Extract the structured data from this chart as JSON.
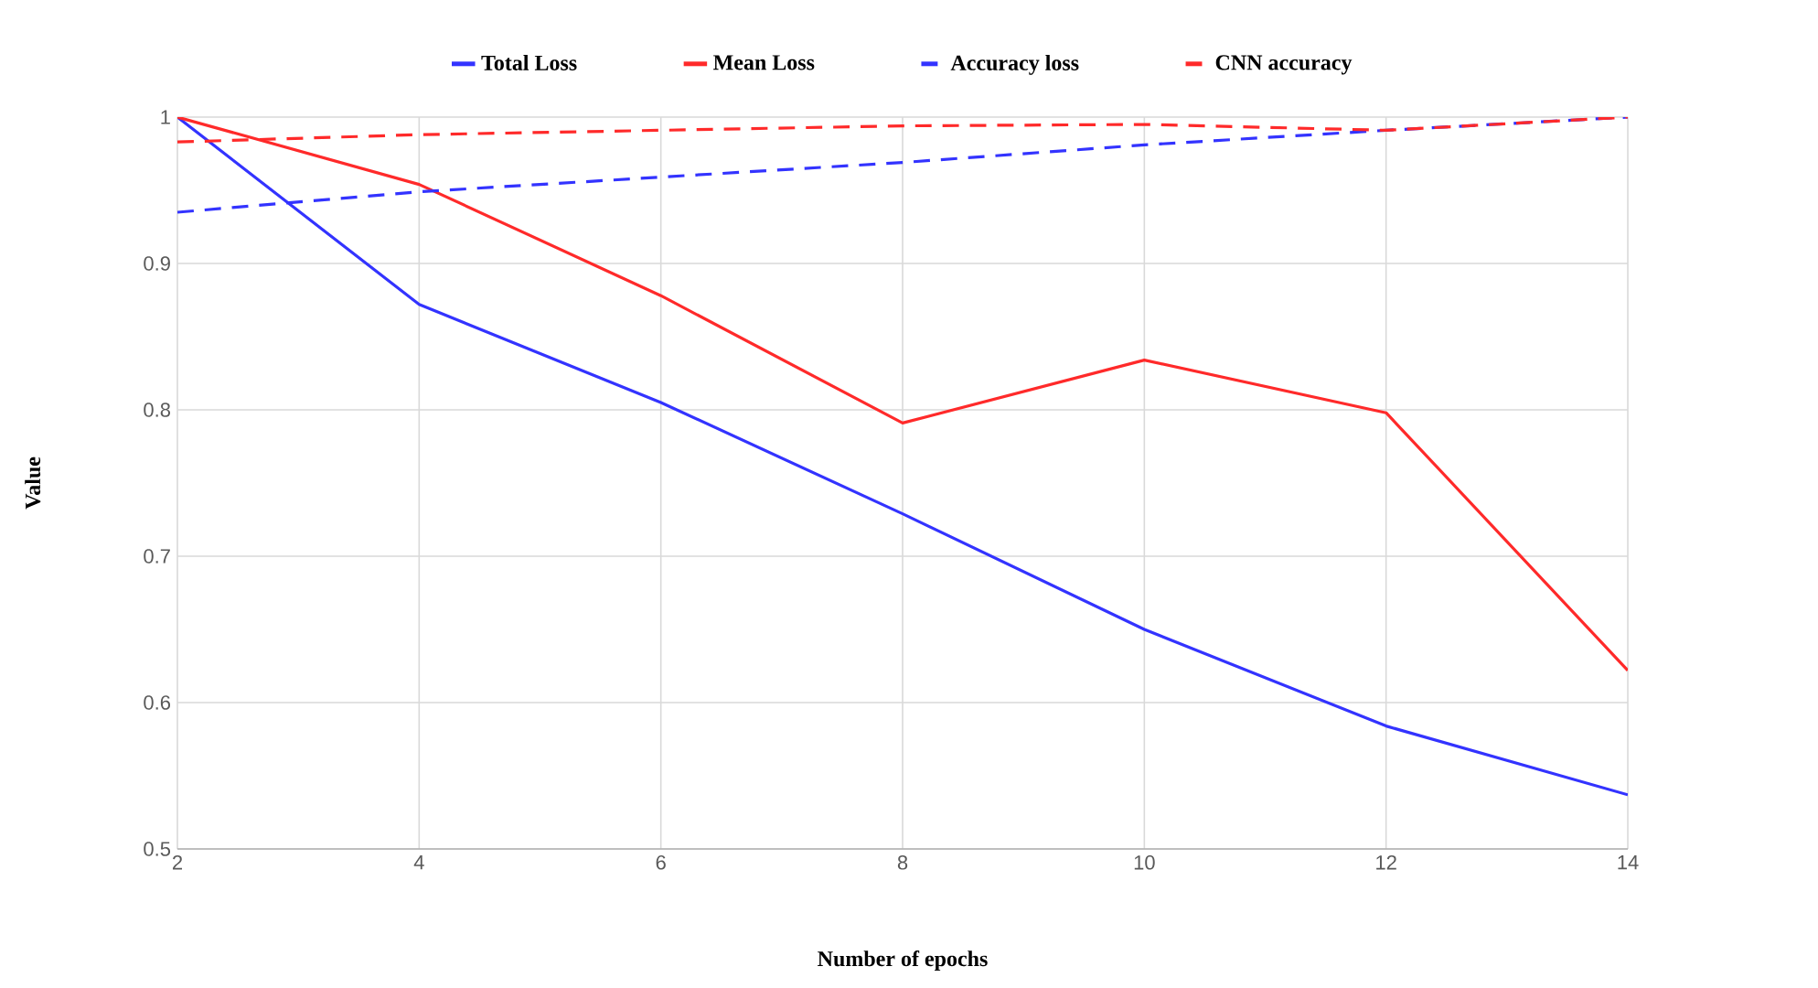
{
  "chart_data": {
    "type": "line",
    "xlabel": "Number of epochs",
    "ylabel": "Value",
    "x": [
      2,
      4,
      6,
      8,
      10,
      12,
      14
    ],
    "xlim": [
      2,
      14
    ],
    "xticks": [
      2,
      4,
      6,
      8,
      10,
      12,
      14
    ],
    "ylim": [
      0.5,
      1
    ],
    "yticks": [
      0.5,
      0.6,
      0.7,
      0.8,
      0.9,
      1
    ],
    "grid": true,
    "legend": "top",
    "marker": "none",
    "series": [
      {
        "name": "Total Loss",
        "color": "#3333ff",
        "line_style": "solid",
        "values": [
          1,
          0.872,
          0.805,
          0.729,
          0.65,
          0.584,
          0.537
        ]
      },
      {
        "name": "Mean Loss",
        "color": "#ff2a2a",
        "line_style": "solid",
        "values": [
          1,
          0.954,
          0.878,
          0.791,
          0.834,
          0.798,
          0.622
        ]
      },
      {
        "name": "Accuracy loss",
        "color": "#3333ff",
        "line_style": "dashed",
        "values": [
          0.935,
          0.949,
          0.959,
          0.969,
          0.981,
          0.991,
          1
        ]
      },
      {
        "name": "CNN accuracy",
        "color": "#ff2a2a",
        "line_style": "dashed",
        "values": [
          0.983,
          0.988,
          0.991,
          0.994,
          0.995,
          0.991,
          1
        ]
      }
    ]
  }
}
